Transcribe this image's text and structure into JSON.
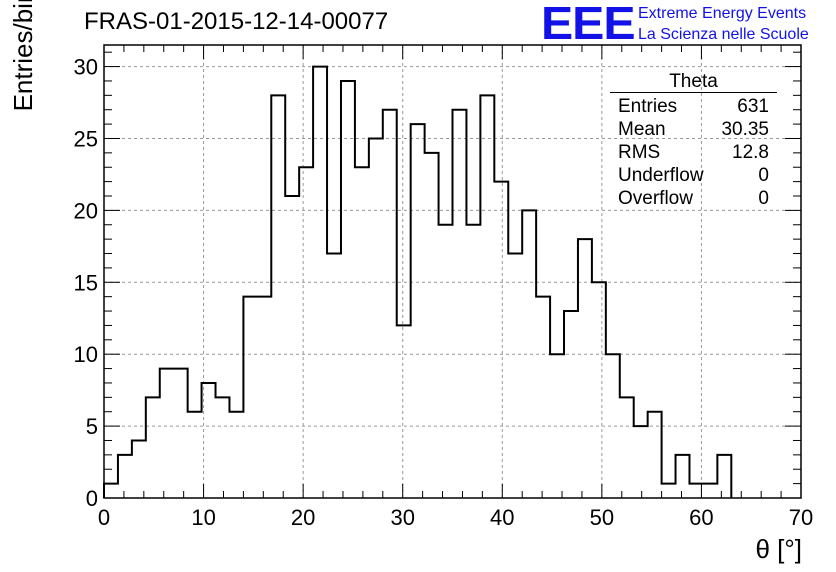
{
  "title": "FRAS-01-2015-12-14-00077",
  "logo": {
    "letters": "EEE",
    "line1": "Extreme Energy Events",
    "line2": "La Scienza nelle Scuole",
    "color": "#1212e6"
  },
  "stats": {
    "title": "Theta",
    "rows": [
      {
        "label": "Entries",
        "value": "631"
      },
      {
        "label": "Mean",
        "value": "30.35"
      },
      {
        "label": "RMS",
        "value": "12.8"
      },
      {
        "label": "Underflow",
        "value": "0"
      },
      {
        "label": "Overflow",
        "value": "0"
      }
    ]
  },
  "chart_data": {
    "type": "histogram",
    "xlabel": "θ [°]",
    "ylabel": "Entries/bin",
    "xlim": [
      0,
      70
    ],
    "ylim": [
      0,
      31.5
    ],
    "bin_width": 1.4,
    "bin_edges_start": 0,
    "values": [
      1,
      3,
      4,
      7,
      9,
      9,
      6,
      8,
      7,
      6,
      14,
      14,
      28,
      21,
      23,
      30,
      17,
      29,
      23,
      25,
      27,
      12,
      26,
      24,
      19,
      27,
      19,
      28,
      22,
      17,
      20,
      14,
      10,
      13,
      18,
      15,
      10,
      7,
      5,
      6,
      1,
      3,
      1,
      1,
      3,
      0,
      0,
      0,
      0,
      0
    ],
    "xticks": [
      0,
      10,
      20,
      30,
      40,
      50,
      60,
      70
    ],
    "yticks": [
      0,
      5,
      10,
      15,
      20,
      25,
      30
    ],
    "grid": true,
    "line_color": "#000000"
  }
}
